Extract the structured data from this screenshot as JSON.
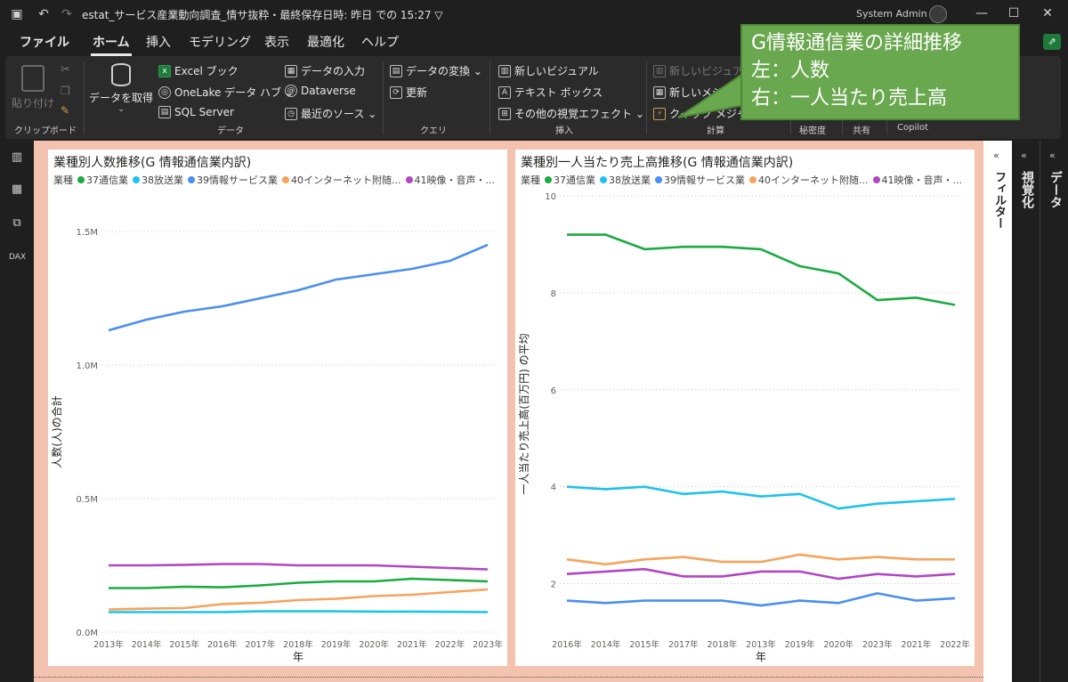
{
  "window": {
    "title": "estat_サービス産業動向調査_情サ抜粋・最終保存日時: 昨日 での 15:27 ▽",
    "user": "System Admin"
  },
  "menu": {
    "tabs": [
      "ファイル",
      "ホーム",
      "挿入",
      "モデリング",
      "表示",
      "最適化",
      "ヘルプ"
    ],
    "active": "ホーム"
  },
  "ribbon": {
    "clipboard": {
      "paste": "貼り付け",
      "group": "クリップボード"
    },
    "data": {
      "get_data": "データを取得",
      "excel": "Excel ブック",
      "onelake": "OneLake データ ハブ ⌄",
      "sql": "SQL Server",
      "enter_data": "データの入力",
      "dataverse": "Dataverse",
      "recent": "最近のソース ⌄",
      "group": "データ"
    },
    "query": {
      "transform": "データの変換 ⌄",
      "refresh": "更新",
      "group": "クエリ"
    },
    "insert": {
      "new_visual": "新しいビジュアル",
      "textbox": "テキスト ボックス",
      "more_visuals": "その他の視覚エフェクト ⌄",
      "group": "挿入"
    },
    "calc": {
      "new_visual_dim": "新しいビジュア",
      "new_measure": "新しいメジャー",
      "quick_measure": "クイック メジャー",
      "group": "計算"
    },
    "sensitivity": "秘密度",
    "share": "共有",
    "copilot": "Copilot"
  },
  "callout": {
    "line1": "G情報通信業の詳細推移",
    "line2": "左：人数",
    "line3": "右：一人当たり売上高"
  },
  "right_panes": {
    "filters": "フィルター",
    "visualizations": "視覚化",
    "data": "データ"
  },
  "colors": {
    "s37": "#1aab40",
    "s38": "#1ec3e8",
    "s39": "#4a8ff0",
    "s40": "#f7a35c",
    "s41": "#b146c2"
  },
  "chart_data": [
    {
      "type": "line",
      "title": "業種別人数推移(G 情報通信業内訳)",
      "legend_title": "業種",
      "xlabel": "年",
      "ylabel": "人数(人)の合計",
      "ylim": [
        0,
        1.5
      ],
      "yticks": [
        "0.0M",
        "0.5M",
        "1.0M",
        "1.5M"
      ],
      "categories": [
        "2013年",
        "2014年",
        "2015年",
        "2016年",
        "2017年",
        "2018年",
        "2019年",
        "2020年",
        "2021年",
        "2022年",
        "2023年"
      ],
      "series": [
        {
          "name": "37通信業",
          "color": "#1aab40",
          "values": [
            0.165,
            0.165,
            0.17,
            0.168,
            0.175,
            0.185,
            0.19,
            0.19,
            0.2,
            0.195,
            0.19
          ]
        },
        {
          "name": "38放送業",
          "color": "#1ec3e8",
          "values": [
            0.075,
            0.075,
            0.075,
            0.075,
            0.078,
            0.078,
            0.078,
            0.077,
            0.077,
            0.076,
            0.075
          ]
        },
        {
          "name": "39情報サービス業",
          "color": "#4a8ff0",
          "values": [
            1.13,
            1.17,
            1.2,
            1.22,
            1.25,
            1.28,
            1.32,
            1.34,
            1.36,
            1.39,
            1.45
          ]
        },
        {
          "name": "40インターネット附随...",
          "color": "#f7a35c",
          "values": [
            0.085,
            0.088,
            0.09,
            0.105,
            0.11,
            0.12,
            0.125,
            0.135,
            0.14,
            0.15,
            0.16
          ]
        },
        {
          "name": "41映像・音声・...",
          "color": "#b146c2",
          "values": [
            0.25,
            0.25,
            0.252,
            0.255,
            0.255,
            0.25,
            0.25,
            0.25,
            0.245,
            0.24,
            0.235
          ]
        }
      ]
    },
    {
      "type": "line",
      "title": "業種別一人当たり売上高推移(G 情報通信業内訳)",
      "legend_title": "業種",
      "xlabel": "年",
      "ylabel": "一人当たり売上高(百万円) の平均",
      "ylim": [
        1.0,
        10.0
      ],
      "yticks": [
        "2",
        "4",
        "6",
        "8",
        "10"
      ],
      "categories": [
        "2016年",
        "2014年",
        "2015年",
        "2017年",
        "2018年",
        "2013年",
        "2019年",
        "2020年",
        "2023年",
        "2021年",
        "2022年"
      ],
      "series": [
        {
          "name": "37通信業",
          "color": "#1aab40",
          "values": [
            9.2,
            9.2,
            8.9,
            8.95,
            8.95,
            8.9,
            8.55,
            8.4,
            7.85,
            7.9,
            7.75
          ]
        },
        {
          "name": "38放送業",
          "color": "#1ec3e8",
          "values": [
            4.0,
            3.95,
            4.0,
            3.85,
            3.9,
            3.8,
            3.85,
            3.55,
            3.65,
            3.7,
            3.75
          ]
        },
        {
          "name": "39情報サービス業",
          "color": "#4a8ff0",
          "values": [
            1.65,
            1.6,
            1.65,
            1.65,
            1.65,
            1.55,
            1.65,
            1.6,
            1.8,
            1.65,
            1.7
          ]
        },
        {
          "name": "40インターネット附随...",
          "color": "#f7a35c",
          "values": [
            2.5,
            2.4,
            2.5,
            2.55,
            2.45,
            2.45,
            2.6,
            2.5,
            2.55,
            2.5,
            2.5
          ]
        },
        {
          "name": "41映像・音声・...",
          "color": "#b146c2",
          "values": [
            2.2,
            2.25,
            2.3,
            2.15,
            2.15,
            2.25,
            2.25,
            2.1,
            2.2,
            2.15,
            2.2
          ]
        }
      ]
    }
  ]
}
